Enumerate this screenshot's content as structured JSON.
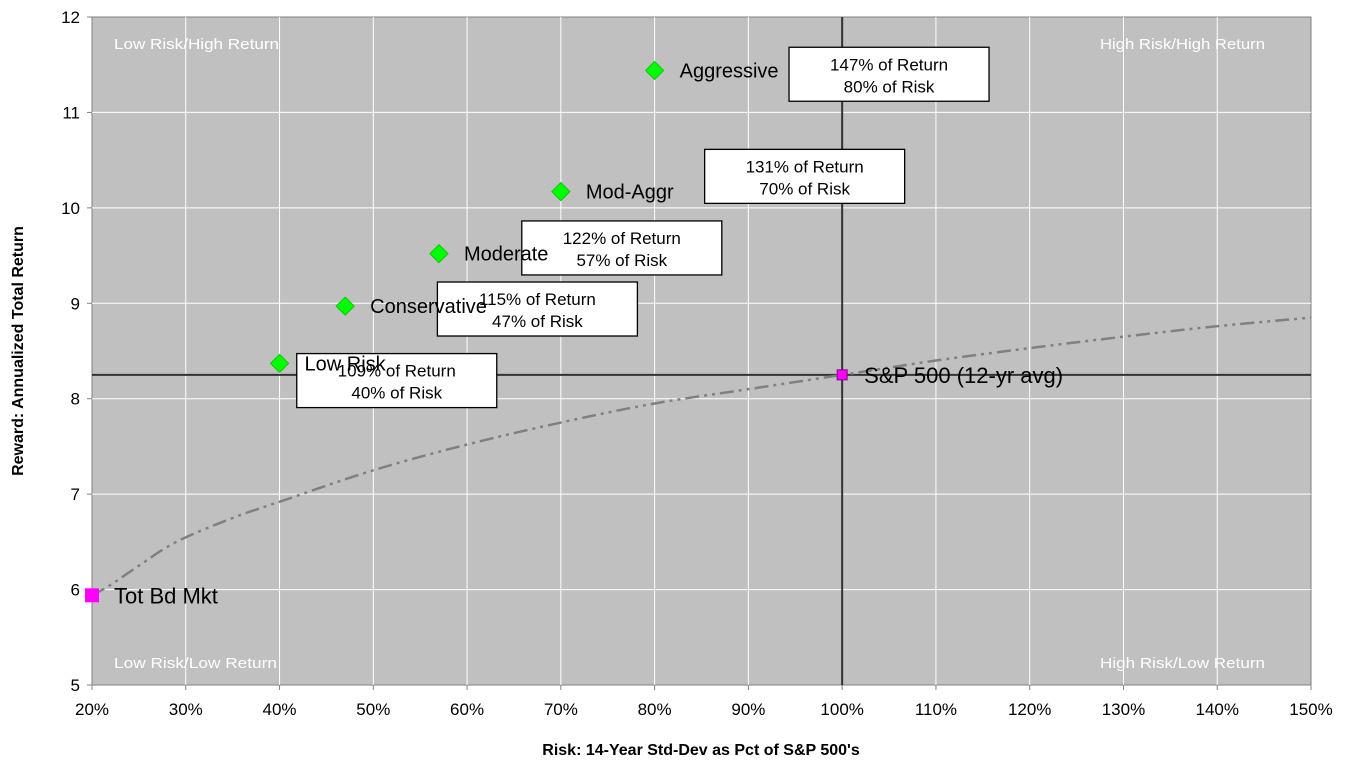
{
  "chart_data": {
    "type": "scatter",
    "title": "",
    "xlabel": "Risk: 14-Year Std-Dev as Pct of S&P 500's",
    "ylabel": "Reward: Annualized Total Return",
    "xlim": [
      20,
      150
    ],
    "ylim": [
      5,
      12
    ],
    "x_ticks": [
      "20%",
      "30%",
      "40%",
      "50%",
      "60%",
      "70%",
      "80%",
      "90%",
      "100%",
      "110%",
      "120%",
      "130%",
      "140%",
      "150%"
    ],
    "y_ticks": [
      "5",
      "6",
      "7",
      "8",
      "9",
      "10",
      "11",
      "12"
    ],
    "grid": true,
    "colors": {
      "plot_bg": "#c0c0c0",
      "grid": "#ffffff",
      "portfolio_marker": "#00ff00",
      "benchmark_marker": "#ff00ff",
      "frontier_line": "#808080",
      "quadrant_line": "#333333"
    },
    "portfolios": [
      {
        "name": "Low Risk",
        "x": 40,
        "y": 8.37
      },
      {
        "name": "Conservative",
        "x": 47,
        "y": 8.97
      },
      {
        "name": "Moderate",
        "x": 57,
        "y": 9.52
      },
      {
        "name": "Mod-Aggr",
        "x": 70,
        "y": 10.17
      },
      {
        "name": "Aggressive",
        "x": 80,
        "y": 11.44
      }
    ],
    "benchmarks": [
      {
        "name": "Tot Bd Mkt",
        "x": 20,
        "y": 5.94
      },
      {
        "name": "S&P 500 (12-yr avg)",
        "x": 100,
        "y": 8.25
      }
    ],
    "frontier_curve": {
      "x": [
        20,
        22,
        25,
        29,
        35,
        40,
        50,
        60,
        70,
        80,
        90,
        100,
        110,
        120,
        130,
        140,
        150
      ],
      "y": [
        5.94,
        6.05,
        6.25,
        6.5,
        6.75,
        6.92,
        7.25,
        7.52,
        7.75,
        7.95,
        8.1,
        8.25,
        8.4,
        8.53,
        8.65,
        8.76,
        8.85
      ]
    },
    "quadrant_lines": {
      "x": 100,
      "y": 8.25
    },
    "quadrant_labels": {
      "top_left": "Low Risk/High Return",
      "top_right": "High Risk/High Return",
      "bottom_left": "Low Risk/Low Return",
      "bottom_right": "High Risk/Low Return"
    },
    "callouts": [
      {
        "line1": "109% of Return",
        "line2": "40% of Risk",
        "x": 52.5,
        "y": 8.19
      },
      {
        "line1": "115% of Return",
        "line2": "47% of Risk",
        "x": 67.5,
        "y": 8.94
      },
      {
        "line1": "122% of Return",
        "line2": "57% of Risk",
        "x": 76.5,
        "y": 9.58
      },
      {
        "line1": "131% of Return",
        "line2": "70% of Risk",
        "x": 96,
        "y": 10.33
      },
      {
        "line1": "147% of Return",
        "line2": "80% of Risk",
        "x": 105,
        "y": 11.4
      }
    ]
  }
}
